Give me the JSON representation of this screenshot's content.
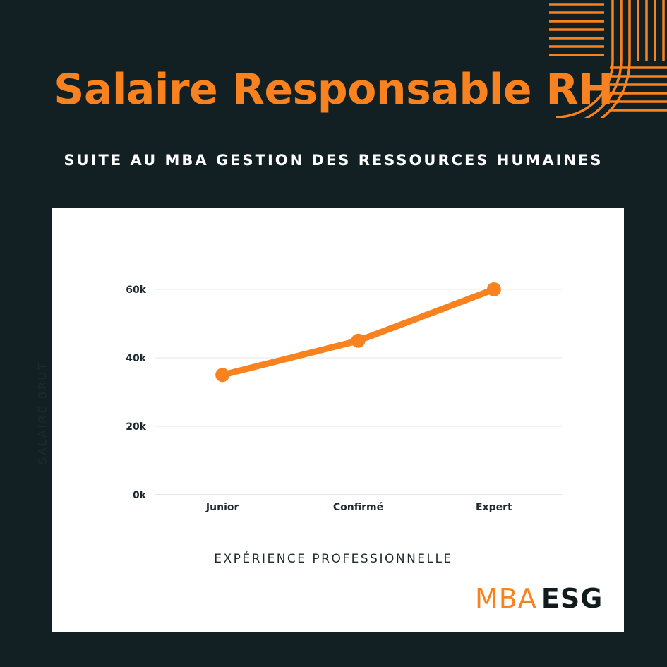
{
  "header": {
    "title": "Salaire Responsable RH",
    "subtitle": "SUITE AU MBA GESTION DES RESSOURCES HUMAINES"
  },
  "colors": {
    "background": "#121f23",
    "accent": "#f7821f",
    "card": "#ffffff",
    "text_dark": "#1e2a2e"
  },
  "decoration": {
    "icon": "orange-striped-arc-pattern"
  },
  "chart_data": {
    "type": "line",
    "title": "Salaire Responsable RH",
    "subtitle": "SUITE AU MBA GESTION DES RESSOURCES HUMAINES",
    "xlabel": "EXPÉRIENCE PROFESSIONNELLE",
    "ylabel": "SALAIRE BRUT",
    "categories": [
      "Junior",
      "Confirmé",
      "Expert"
    ],
    "series": [
      {
        "values": [
          35000,
          45000,
          60000
        ],
        "color": "#f7821f"
      }
    ],
    "ylim": [
      0,
      60000
    ],
    "yticks": [
      0,
      20000,
      40000,
      60000
    ],
    "ytick_labels": [
      "0k",
      "20k",
      "40k",
      "60k"
    ],
    "grid": true,
    "legend": "none"
  },
  "logo": {
    "mba": "MBA",
    "esg": "ESG"
  }
}
